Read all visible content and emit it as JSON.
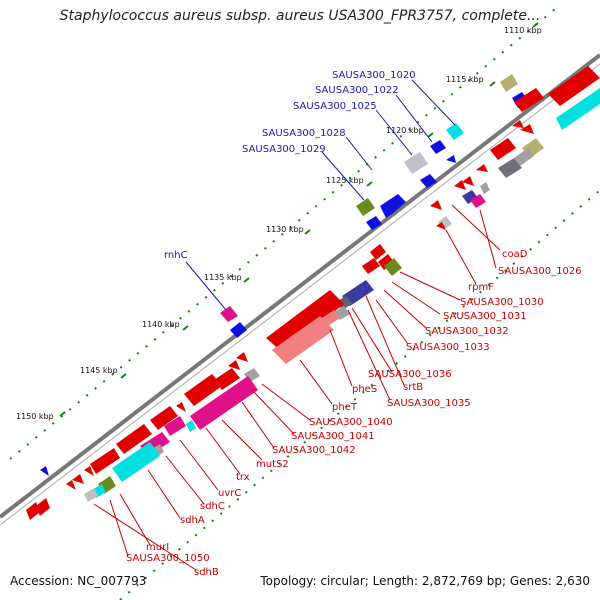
{
  "title": "Staphylococcus aureus subsp. aureus USA300_FPR3757, complete...",
  "accession": "Accession: NC_007793",
  "summary": "Topology: circular; Length: 2,872,769 bp; Genes: 2,630",
  "ticks": [
    {
      "label": "1110 kbp"
    },
    {
      "label": "1115 kbp"
    },
    {
      "label": "1120 kbp"
    },
    {
      "label": "1125 kbp"
    },
    {
      "label": "1130 kbp"
    },
    {
      "label": "1135 kbp"
    },
    {
      "label": "1140 kbp"
    },
    {
      "label": "1145 kbp"
    },
    {
      "label": "1150 kbp"
    }
  ],
  "top_labels": [
    {
      "label": "SAUSA300_1020"
    },
    {
      "label": "SAUSA300_1022"
    },
    {
      "label": "SAUSA300_1025"
    },
    {
      "label": "SAUSA300_1028"
    },
    {
      "label": "SAUSA300_1029"
    },
    {
      "label": "rnhC"
    }
  ],
  "bottom_labels": [
    {
      "label": "coaD"
    },
    {
      "label": "SAUSA300_1026"
    },
    {
      "label": "rpmF"
    },
    {
      "label": "SAUSA300_1030"
    },
    {
      "label": "SAUSA300_1031"
    },
    {
      "label": "SAUSA300_1032"
    },
    {
      "label": "SAUSA300_1033"
    },
    {
      "label": "SAUSA300_1036"
    },
    {
      "label": "srtB"
    },
    {
      "label": "SAUSA300_1035"
    },
    {
      "label": "pheS"
    },
    {
      "label": "pheT"
    },
    {
      "label": "SAUSA300_1040"
    },
    {
      "label": "SAUSA300_1041"
    },
    {
      "label": "SAUSA300_1042"
    },
    {
      "label": "mutS2"
    },
    {
      "label": "trx"
    },
    {
      "label": "uvrC"
    },
    {
      "label": "sdhC"
    },
    {
      "label": "sdhA"
    },
    {
      "label": "murI"
    },
    {
      "label": "SAUSA300_1050"
    },
    {
      "label": "sdhB"
    }
  ],
  "colors": {
    "backbone": "#777777",
    "forward_cds": "#1010e0",
    "reverse_cds": "#e00000",
    "top_label": "#1a1ab8",
    "bottom_label": "#c80000",
    "cyan": "#00e0e0",
    "magenta": "#e0108a",
    "olive": "#6b8a1e",
    "khaki": "#b5b070",
    "grey": "#a0a0a0",
    "dark_grey": "#606060",
    "navy": "#3a3aa0",
    "gc_dots": "#0a8a0a"
  }
}
